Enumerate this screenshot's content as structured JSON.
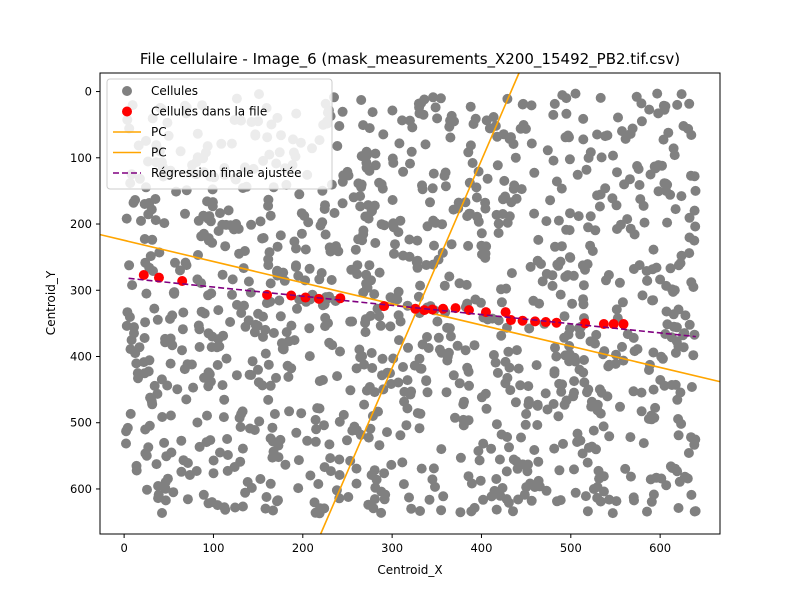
{
  "chart_data": {
    "type": "scatter",
    "title": "File cellulaire - Image_6 (mask_measurements_X200_15492_PB2.tif.csv)",
    "xlabel": "Centroid_X",
    "ylabel": "Centroid_Y",
    "xlim": [
      -27,
      667
    ],
    "ylim": [
      -28,
      668
    ],
    "y_inverted": true,
    "grid": false,
    "legend_position": "upper-left",
    "x_ticks": [
      0,
      100,
      200,
      300,
      400,
      500,
      600
    ],
    "y_ticks": [
      0,
      100,
      200,
      300,
      400,
      500,
      600
    ],
    "colors": {
      "cells": "#808080",
      "file_cells": "#ff0000",
      "pc": "#ffa500",
      "regression": "#800080"
    },
    "series": [
      {
        "name": "Cellules",
        "kind": "scatter",
        "color": "#808080",
        "count": 1170,
        "x_range": [
          2,
          640
        ],
        "y_range": [
          2,
          638
        ]
      },
      {
        "name": "Cellules dans la file",
        "kind": "scatter",
        "color": "#ff0000",
        "points": [
          [
            22,
            277
          ],
          [
            39,
            281
          ],
          [
            65,
            286
          ],
          [
            160,
            307
          ],
          [
            187,
            308
          ],
          [
            203,
            311
          ],
          [
            218,
            313
          ],
          [
            242,
            312
          ],
          [
            291,
            324
          ],
          [
            326,
            328
          ],
          [
            336,
            330
          ],
          [
            345,
            329
          ],
          [
            357,
            328
          ],
          [
            371,
            327
          ],
          [
            386,
            330
          ],
          [
            405,
            333
          ],
          [
            427,
            333
          ],
          [
            433,
            345
          ],
          [
            446,
            346
          ],
          [
            460,
            347
          ],
          [
            472,
            348
          ],
          [
            484,
            349
          ],
          [
            516,
            350
          ],
          [
            537,
            351
          ],
          [
            548,
            351
          ],
          [
            559,
            351
          ]
        ]
      },
      {
        "name": "PC",
        "kind": "line",
        "color": "#ffa500",
        "points": [
          [
            -27,
            216
          ],
          [
            667,
            438
          ]
        ]
      },
      {
        "name": "PC",
        "kind": "line",
        "color": "#ffa500",
        "points": [
          [
            220,
            668
          ],
          [
            442,
            -28
          ]
        ]
      },
      {
        "name": "Régression finale ajustée",
        "kind": "dashed-line",
        "color": "#800080",
        "points": [
          [
            5,
            282
          ],
          [
            640,
            370
          ]
        ]
      }
    ]
  }
}
